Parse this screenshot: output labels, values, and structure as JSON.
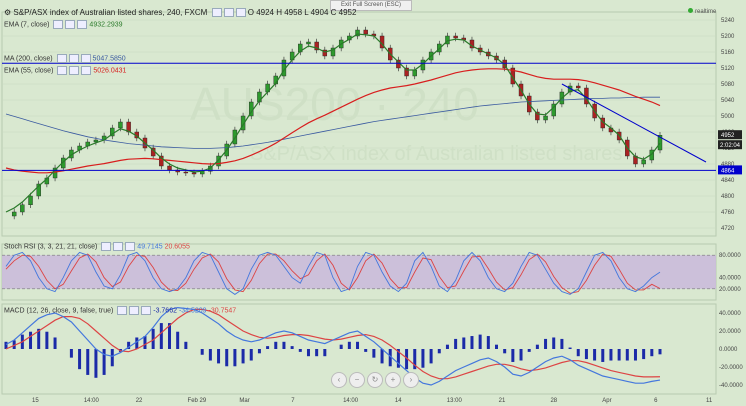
{
  "toolbar": {
    "exit_fullscreen": "Exit Full Screen (ESC)",
    "realtime": "realtime"
  },
  "header": {
    "title": "S&P/ASX index of Australian listed shares, 240, FXCM",
    "ohlc": "O 4924 H 4958 L 4904 C 4952",
    "indicators": [
      {
        "label": "EMA (7, close)",
        "value": "4932.2939"
      },
      {
        "label": "MA (200, close)",
        "value": "5047.5850"
      },
      {
        "label": "EMA (55, close)",
        "value": "5026.0431"
      }
    ],
    "stoch_label": "Stoch RSI (3, 3, 21, 21, close)",
    "stoch_values": [
      "49.7145",
      "20.6055"
    ],
    "macd_label": "MACD (12, 26, close, 9, false, true)",
    "macd_values": [
      "-3.7662",
      "-34.5209",
      "-30.7547"
    ]
  },
  "chart_data": {
    "type": "candlestick",
    "symbol": "S&P/ASX 200",
    "timeframe": "240",
    "price_axis": {
      "ticks": [
        4720,
        4760,
        4800,
        4840,
        4880,
        4920,
        4960,
        5000,
        5040,
        5080,
        5120,
        5160,
        5200,
        5240
      ],
      "last_price": "4952",
      "countdown": "2:02:04",
      "level_label": "4864"
    },
    "horizontal_levels": [
      5132,
      4864
    ],
    "trendline": {
      "from": [
        "29",
        5080
      ],
      "to": [
        "Apr 6",
        4885
      ]
    },
    "x_labels": [
      "15",
      "14:00",
      "22",
      "Feb 29",
      "Mar",
      "7",
      "14:00",
      "14",
      "13:00",
      "21",
      "28",
      "Apr",
      "6",
      "11"
    ],
    "close_path": [
      4750,
      4760,
      4778,
      4800,
      4830,
      4845,
      4870,
      4895,
      4915,
      4925,
      4935,
      4940,
      4950,
      4970,
      4985,
      4960,
      4945,
      4920,
      4900,
      4875,
      4865,
      4860,
      4858,
      4855,
      4862,
      4875,
      4900,
      4930,
      4965,
      5000,
      5035,
      5060,
      5080,
      5100,
      5140,
      5160,
      5180,
      5185,
      5165,
      5150,
      5170,
      5190,
      5200,
      5215,
      5205,
      5200,
      5170,
      5140,
      5120,
      5100,
      5115,
      5140,
      5160,
      5180,
      5200,
      5195,
      5190,
      5170,
      5160,
      5150,
      5140,
      5120,
      5080,
      5050,
      5010,
      4990,
      5000,
      5030,
      5060,
      5075,
      5070,
      5030,
      4995,
      4970,
      4960,
      4940,
      4900,
      4880,
      4890,
      4915,
      4952
    ],
    "ema7_path": [
      4760,
      4770,
      4785,
      4805,
      4825,
      4843,
      4865,
      4885,
      4903,
      4915,
      4925,
      4933,
      4940,
      4955,
      4968,
      4962,
      4950,
      4932,
      4915,
      4895,
      4880,
      4870,
      4865,
      4860,
      4862,
      4870,
      4890,
      4915,
      4945,
      4978,
      5010,
      5038,
      5060,
      5082,
      5115,
      5140,
      5162,
      5175,
      5170,
      5160,
      5165,
      5180,
      5192,
      5205,
      5203,
      5200,
      5180,
      5155,
      5135,
      5115,
      5115,
      5130,
      5150,
      5168,
      5188,
      5192,
      5190,
      5175,
      5165,
      5155,
      5145,
      5128,
      5095,
      5065,
      5030,
      5005,
      5003,
      5022,
      5045,
      5062,
      5066,
      5043,
      5012,
      4985,
      4970,
      4952,
      4920,
      4898,
      4892,
      4905,
      4932
    ],
    "ema55_path": [
      4870,
      4865,
      4862,
      4860,
      4858,
      4858,
      4860,
      4863,
      4867,
      4871,
      4875,
      4878,
      4881,
      4885,
      4889,
      4892,
      4893,
      4894,
      4893,
      4891,
      4889,
      4887,
      4885,
      4883,
      4881,
      4880,
      4881,
      4884,
      4888,
      4894,
      4902,
      4911,
      4921,
      4932,
      4945,
      4958,
      4971,
      4983,
      4993,
      5002,
      5012,
      5022,
      5032,
      5042,
      5051,
      5059,
      5065,
      5070,
      5073,
      5076,
      5080,
      5085,
      5090,
      5096,
      5102,
      5108,
      5112,
      5115,
      5117,
      5118,
      5118,
      5117,
      5114,
      5110,
      5104,
      5098,
      5094,
      5092,
      5092,
      5092,
      5091,
      5088,
      5083,
      5077,
      5071,
      5065,
      5057,
      5049,
      5042,
      5035,
      5026
    ],
    "ma200_path": [
      5005,
      4999,
      4993,
      4987,
      4981,
      4975,
      4969,
      4963,
      4958,
      4953,
      4948,
      4944,
      4940,
      4937,
      4934,
      4931,
      4929,
      4927,
      4925,
      4923,
      4922,
      4921,
      4920,
      4919,
      4919,
      4919,
      4920,
      4921,
      4923,
      4925,
      4928,
      4931,
      4934,
      4938,
      4942,
      4946,
      4950,
      4954,
      4958,
      4962,
      4966,
      4970,
      4974,
      4978,
      4982,
      4986,
      4989,
      4992,
      4995,
      4998,
      5001,
      5004,
      5007,
      5010,
      5013,
      5016,
      5019,
      5022,
      5025,
      5027,
      5029,
      5031,
      5033,
      5035,
      5036,
      5037,
      5038,
      5039,
      5040,
      5041,
      5042,
      5043,
      5044,
      5044,
      5045,
      5045,
      5046,
      5046,
      5047,
      5047,
      5047
    ],
    "stoch": {
      "ticks": [
        80,
        40,
        20
      ],
      "k": [
        60,
        80,
        85,
        70,
        40,
        20,
        15,
        40,
        70,
        85,
        80,
        50,
        25,
        20,
        45,
        80,
        85,
        70,
        40,
        20,
        15,
        20,
        40,
        70,
        85,
        80,
        50,
        20,
        10,
        20,
        55,
        80,
        85,
        80,
        60,
        40,
        30,
        60,
        85,
        80,
        40,
        15,
        20,
        60,
        85,
        80,
        50,
        25,
        15,
        30,
        70,
        85,
        60,
        25,
        15,
        35,
        70,
        85,
        70,
        40,
        20,
        15,
        30,
        60,
        85,
        80,
        55,
        30,
        15,
        10,
        20,
        50,
        80,
        85,
        70,
        40,
        20,
        15,
        25,
        40,
        49.7
      ],
      "d": [
        55,
        70,
        80,
        78,
        60,
        35,
        20,
        28,
        52,
        75,
        82,
        68,
        40,
        24,
        32,
        60,
        80,
        78,
        58,
        32,
        18,
        17,
        30,
        55,
        75,
        82,
        68,
        38,
        18,
        15,
        35,
        65,
        82,
        82,
        70,
        52,
        38,
        45,
        70,
        82,
        62,
        30,
        18,
        40,
        70,
        82,
        66,
        38,
        22,
        22,
        50,
        75,
        72,
        42,
        22,
        25,
        52,
        77,
        78,
        56,
        32,
        18,
        22,
        45,
        72,
        82,
        68,
        42,
        22,
        12,
        15,
        35,
        62,
        82,
        78,
        55,
        30,
        18,
        18,
        28,
        20.6
      ]
    },
    "macd": {
      "ticks": [
        40,
        20,
        0,
        -20,
        -40
      ],
      "macd": [
        5,
        10,
        18,
        26,
        34,
        38,
        40,
        36,
        30,
        20,
        10,
        0,
        -6,
        -8,
        -4,
        2,
        8,
        14,
        24,
        36,
        44,
        46,
        45,
        44,
        40,
        34,
        28,
        20,
        14,
        10,
        8,
        10,
        14,
        18,
        20,
        18,
        14,
        10,
        8,
        6,
        10,
        14,
        18,
        20,
        14,
        8,
        0,
        -8,
        -16,
        -24,
        -32,
        -38,
        -40,
        -36,
        -30,
        -24,
        -20,
        -16,
        -12,
        -10,
        -14,
        -20,
        -28,
        -30,
        -26,
        -20,
        -14,
        -10,
        -8,
        -12,
        -18,
        -22,
        -26,
        -30,
        -32,
        -34,
        -36,
        -38,
        -38,
        -36,
        -34.5
      ],
      "signal": [
        0,
        4,
        8,
        14,
        20,
        26,
        32,
        36,
        36,
        34,
        28,
        20,
        12,
        4,
        -2,
        -3,
        0,
        5,
        10,
        18,
        26,
        34,
        40,
        44,
        44,
        42,
        38,
        32,
        26,
        20,
        16,
        13,
        12,
        13,
        15,
        16,
        16,
        15,
        13,
        11,
        10,
        11,
        13,
        15,
        16,
        14,
        10,
        4,
        -3,
        -10,
        -18,
        -25,
        -30,
        -33,
        -33,
        -31,
        -28,
        -25,
        -22,
        -19,
        -17,
        -17,
        -19,
        -22,
        -24,
        -23,
        -21,
        -18,
        -15,
        -13,
        -13,
        -15,
        -18,
        -21,
        -24,
        -26,
        -28,
        -30,
        -31,
        -31,
        -30.8
      ]
    },
    "colors": {
      "background": "#d9e8d0",
      "up_candle": "#2e9a2e",
      "down_candle": "#aa2222",
      "ema7": "#2a7a2a",
      "ema55": "#d81e1e",
      "ma200": "#3a5aa0",
      "levels": "#0000cc",
      "stoch_k": "#4477dd",
      "stoch_d": "#dd4444",
      "stoch_band": "#c9b8dc",
      "macd_hist": "#1b2aa8"
    }
  }
}
